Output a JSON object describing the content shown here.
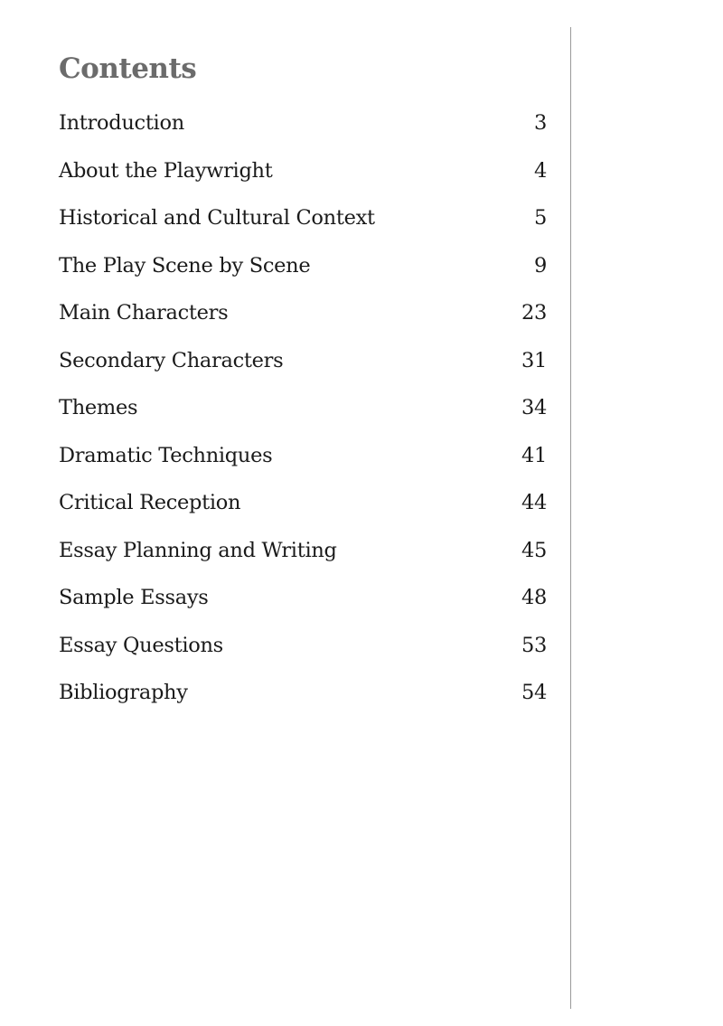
{
  "title": "Contents",
  "entries": [
    {
      "label": "Introduction",
      "page": "3"
    },
    {
      "label": "About the Playwright",
      "page": "4"
    },
    {
      "label": "Historical and Cultural Context",
      "page": "5"
    },
    {
      "label": "The Play Scene by Scene",
      "page": "9"
    },
    {
      "label": "Main Characters",
      "page": "23"
    },
    {
      "label": "Secondary Characters",
      "page": "31"
    },
    {
      "label": "Themes",
      "page": "34"
    },
    {
      "label": "Dramatic Techniques",
      "page": "41"
    },
    {
      "label": "Critical Reception",
      "page": "44"
    },
    {
      "label": "Essay Planning and Writing",
      "page": "45"
    },
    {
      "label": "Sample Essays",
      "page": "48"
    },
    {
      "label": "Essay Questions",
      "page": "53"
    },
    {
      "label": "Bibliography",
      "page": "54"
    }
  ]
}
